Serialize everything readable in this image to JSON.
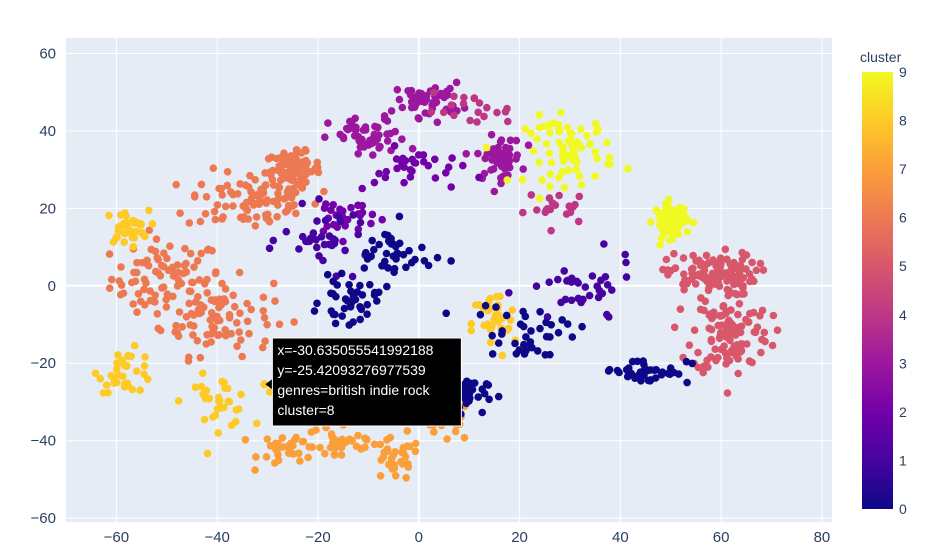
{
  "chart_data": {
    "type": "scatter",
    "title": "",
    "xlabel": "",
    "ylabel": "",
    "xlim": [
      -70,
      82
    ],
    "ylim": [
      -61,
      64
    ],
    "x_ticks": [
      -60,
      -40,
      -20,
      0,
      20,
      40,
      60,
      80
    ],
    "x_tick_labels": [
      "−60",
      "−40",
      "−20",
      "0",
      "20",
      "40",
      "60",
      "80"
    ],
    "y_ticks": [
      -60,
      -40,
      -20,
      0,
      20,
      40,
      60
    ],
    "y_tick_labels": [
      "−60",
      "−40",
      "−20",
      "0",
      "20",
      "40",
      "60"
    ],
    "grid": true,
    "legend": "none",
    "colorbar": {
      "title": "cluster",
      "min": 0,
      "max": 9,
      "ticks": [
        0,
        1,
        2,
        3,
        4,
        5,
        6,
        7,
        8,
        9
      ],
      "tick_labels": [
        "0",
        "1",
        "2",
        "3",
        "4",
        "5",
        "6",
        "7",
        "8",
        "9"
      ],
      "colorscale": [
        "#0d0887",
        "#46039f",
        "#7201a8",
        "#9c179e",
        "#bd3786",
        "#d8576b",
        "#ed7953",
        "#fb9f3a",
        "#fdca26",
        "#f0f921"
      ]
    },
    "clusters": [
      {
        "cluster": 0,
        "count": 200,
        "centers": [
          [
            -5,
            8,
            7,
            7
          ],
          [
            -14,
            -4,
            5,
            5
          ],
          [
            22,
            -12,
            10,
            7
          ],
          [
            45,
            -22,
            8,
            3
          ],
          [
            8,
            -28,
            5,
            4
          ]
        ]
      },
      {
        "cluster": 1,
        "count": 70,
        "centers": [
          [
            -18,
            12,
            8,
            7
          ],
          [
            32,
            -2,
            10,
            8
          ]
        ]
      },
      {
        "cluster": 2,
        "count": 60,
        "centers": [
          [
            0,
            30,
            8,
            5
          ],
          [
            -15,
            18,
            6,
            5
          ]
        ]
      },
      {
        "cluster": 3,
        "count": 160,
        "centers": [
          [
            -10,
            38,
            7,
            5
          ],
          [
            2,
            48,
            6,
            4
          ],
          [
            16,
            33,
            4,
            5
          ]
        ]
      },
      {
        "cluster": 4,
        "count": 40,
        "centers": [
          [
            10,
            45,
            8,
            4
          ],
          [
            28,
            20,
            6,
            4
          ]
        ]
      },
      {
        "cluster": 5,
        "count": 230,
        "centers": [
          [
            62,
            -12,
            7,
            10
          ],
          [
            58,
            3,
            8,
            5
          ]
        ]
      },
      {
        "cluster": 6,
        "count": 340,
        "centers": [
          [
            -50,
            2,
            10,
            9
          ],
          [
            -33,
            22,
            12,
            7
          ],
          [
            -40,
            -8,
            10,
            9
          ],
          [
            -25,
            30,
            5,
            4
          ]
        ]
      },
      {
        "cluster": 7,
        "count": 130,
        "centers": [
          [
            -15,
            -40,
            7,
            6
          ],
          [
            -5,
            -45,
            5,
            5
          ],
          [
            5,
            -35,
            5,
            5
          ],
          [
            -25,
            -42,
            6,
            4
          ]
        ]
      },
      {
        "cluster": 8,
        "count": 140,
        "centers": [
          [
            -58,
            -22,
            5,
            5
          ],
          [
            -40,
            -30,
            6,
            6
          ],
          [
            -58,
            15,
            4,
            4
          ],
          [
            15,
            -10,
            4,
            8
          ]
        ]
      },
      {
        "cluster": 9,
        "count": 140,
        "centers": [
          [
            30,
            35,
            8,
            8
          ],
          [
            50,
            17,
            3,
            4
          ]
        ]
      }
    ],
    "hover": {
      "x": -30.635055541992188,
      "y": -25.42093276977539,
      "cluster": 8,
      "lines": [
        "x=-30.635055541992188",
        "y=-25.42093276977539",
        "genres=british indie rock",
        "cluster=8"
      ]
    }
  }
}
